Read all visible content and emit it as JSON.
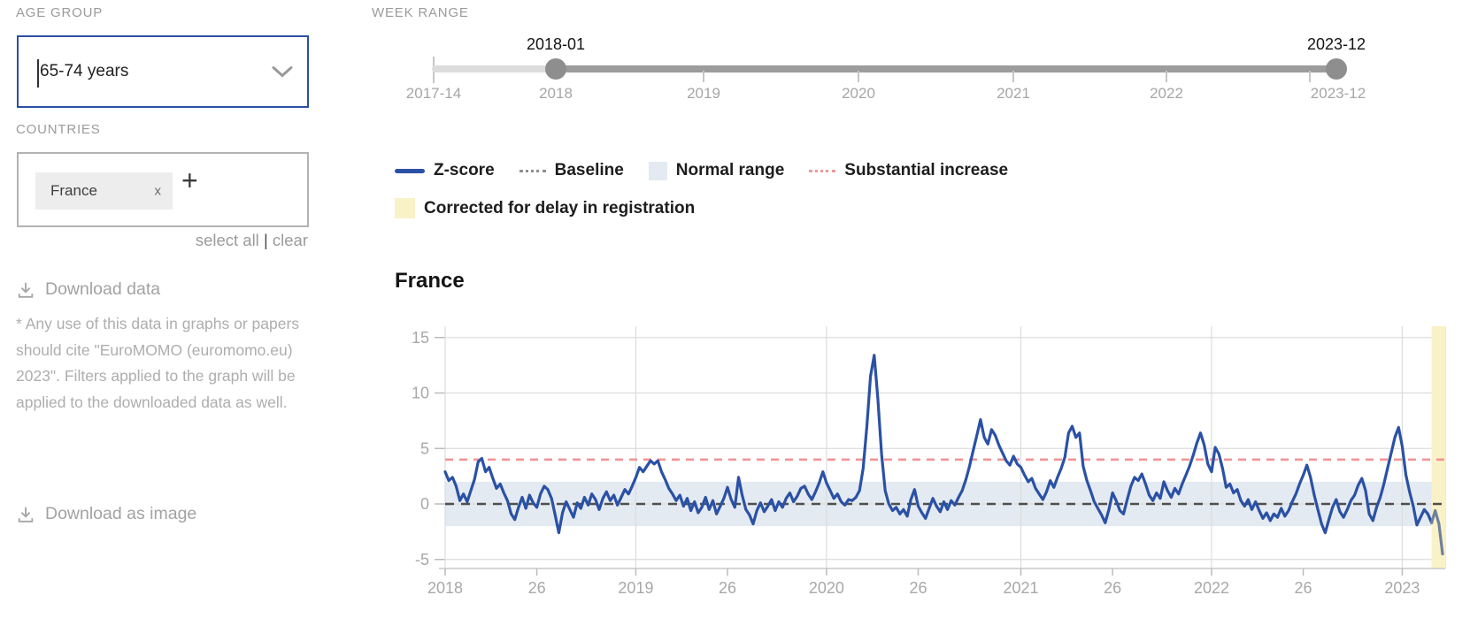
{
  "colors": {
    "accent_blue": "#2b50a1",
    "zscore": "#2a51a5",
    "zscore_corrected_tail": "#70819e",
    "baseline": "#4f4f4f",
    "normal_range": "#e4eaf1",
    "substantial_increase": "#f29496",
    "corrected_band": "#f9f2c7",
    "gridline": "#dcdcdc"
  },
  "sidebar": {
    "age_group_label": "AGE GROUP",
    "age_group_value": "65-74 years",
    "countries_label": "COUNTRIES",
    "country_tags": [
      {
        "label": "France",
        "remove_label": "x"
      }
    ],
    "add_country_label": "+",
    "select_all_label": "select all",
    "separator": "|",
    "clear_label": "clear",
    "download_data_label": "Download data",
    "citation": "* Any use of this data in graphs or papers should cite \"EuroMOMO (euromomo.eu) 2023\". Filters applied to the graph will be applied to the downloaded data as well.",
    "download_image_label": "Download as image"
  },
  "week_range": {
    "label": "WEEK RANGE",
    "start_value": "2018-01",
    "end_value": "2023-12",
    "axis_ticks": [
      "2017-14",
      "2018",
      "2019",
      "2020",
      "2021",
      "2022",
      "2023-12"
    ]
  },
  "legend": {
    "items": [
      {
        "label": "Z-score",
        "swatch": "line"
      },
      {
        "label": "Baseline",
        "swatch": "dotted"
      },
      {
        "label": "Normal range",
        "swatch": "box"
      },
      {
        "label": "Substantial increase",
        "swatch": "dotted-red"
      },
      {
        "label": "Corrected for delay in registration",
        "swatch": "box-yellow"
      }
    ]
  },
  "chart_data": {
    "type": "line",
    "title": "France",
    "ylabel": "",
    "xlabel": "",
    "ylim": [
      -6,
      16
    ],
    "y_ticks": [
      15,
      10,
      5,
      0,
      -5
    ],
    "baseline_value": 0,
    "substantial_increase_value": 4,
    "normal_range": [
      -2,
      2
    ],
    "x_start_week": "2018-01",
    "x_end_week": "2023-12",
    "corrected_tail_weeks": 3,
    "x_ticks": [
      {
        "week_index": 0,
        "label": "2018",
        "year_line": true
      },
      {
        "week_index": 25,
        "label": "26"
      },
      {
        "week_index": 52,
        "label": "2019",
        "year_line": true
      },
      {
        "week_index": 77,
        "label": "26"
      },
      {
        "week_index": 104,
        "label": "2020",
        "year_line": true
      },
      {
        "week_index": 129,
        "label": "26"
      },
      {
        "week_index": 157,
        "label": "2021",
        "year_line": true
      },
      {
        "week_index": 182,
        "label": "26"
      },
      {
        "week_index": 209,
        "label": "2022",
        "year_line": true
      },
      {
        "week_index": 234,
        "label": "26"
      },
      {
        "week_index": 261,
        "label": "2023",
        "year_line": true
      }
    ],
    "series": [
      {
        "name": "Z-score",
        "values": [
          2.9,
          2.1,
          2.4,
          1.6,
          0.3,
          0.9,
          0.2,
          1.2,
          2.2,
          3.8,
          4.1,
          2.9,
          3.3,
          2.3,
          1.4,
          1.8,
          1.0,
          0.3,
          -0.9,
          -1.4,
          -0.3,
          0.6,
          -0.4,
          0.8,
          0.1,
          -0.3,
          0.9,
          1.6,
          1.3,
          0.5,
          -1.0,
          -2.6,
          -0.8,
          0.2,
          -0.5,
          -1.2,
          0.1,
          -0.4,
          0.6,
          -0.1,
          0.9,
          0.4,
          -0.5,
          0.5,
          1.1,
          0.3,
          0.8,
          -0.1,
          0.6,
          1.3,
          0.9,
          1.6,
          2.4,
          3.3,
          2.9,
          3.4,
          3.9,
          3.6,
          3.9,
          2.9,
          2.2,
          1.4,
          0.9,
          0.3,
          0.8,
          -0.2,
          0.5,
          -0.6,
          0.2,
          -0.8,
          -0.3,
          0.6,
          -0.5,
          0.3,
          -0.9,
          -0.2,
          0.5,
          1.5,
          0.4,
          -0.3,
          2.4,
          0.8,
          -0.5,
          -1.0,
          -1.8,
          -0.6,
          0.1,
          -0.7,
          -0.2,
          0.4,
          -0.6,
          0.2,
          -0.3,
          0.5,
          1.0,
          0.2,
          0.7,
          1.4,
          1.6,
          0.9,
          0.4,
          1.1,
          1.9,
          2.9,
          1.9,
          1.2,
          0.5,
          0.9,
          0.2,
          -0.1,
          0.4,
          0.3,
          0.6,
          1.2,
          3.2,
          7.0,
          11.5,
          13.4,
          9.5,
          4.5,
          1.2,
          0.0,
          -0.6,
          -0.3,
          -0.9,
          -0.5,
          -1.1,
          0.4,
          1.3,
          -0.2,
          -0.8,
          -1.3,
          -0.4,
          0.5,
          -0.2,
          -0.7,
          0.2,
          -0.5,
          0.3,
          -0.1,
          0.6,
          1.2,
          2.2,
          3.4,
          4.8,
          6.2,
          7.6,
          6.0,
          5.4,
          6.7,
          6.2,
          5.3,
          4.6,
          3.9,
          3.5,
          4.3,
          3.6,
          3.3,
          2.6,
          2.0,
          2.3,
          1.4,
          0.9,
          0.4,
          1.1,
          2.1,
          1.5,
          2.4,
          3.2,
          4.2,
          6.4,
          7.0,
          6.0,
          6.4,
          3.4,
          2.1,
          1.2,
          0.2,
          -0.4,
          -1.0,
          -1.7,
          -0.5,
          1.0,
          0.3,
          -0.6,
          -0.9,
          0.4,
          1.6,
          2.4,
          2.1,
          2.7,
          1.8,
          0.8,
          0.3,
          1.0,
          0.5,
          2.0,
          1.2,
          0.6,
          1.4,
          0.9,
          1.8,
          2.6,
          3.4,
          4.4,
          5.5,
          6.4,
          5.3,
          3.6,
          2.9,
          5.1,
          4.5,
          3.2,
          1.5,
          1.8,
          1.0,
          1.3,
          0.3,
          -0.2,
          0.4,
          -0.5,
          0.2,
          -0.6,
          -1.3,
          -0.8,
          -1.5,
          -0.9,
          -1.2,
          -0.4,
          -1.1,
          -0.6,
          0.2,
          0.9,
          1.8,
          2.6,
          3.5,
          2.4,
          0.8,
          -0.5,
          -1.8,
          -2.6,
          -1.4,
          -0.3,
          0.4,
          -0.7,
          -1.2,
          -0.5,
          0.3,
          0.8,
          1.7,
          2.3,
          1.2,
          -0.9,
          -1.5,
          -0.3,
          0.6,
          1.8,
          3.2,
          4.6,
          6.0,
          6.9,
          5.2,
          2.6,
          1.1,
          -0.2,
          -1.9,
          -1.2,
          -0.5,
          -0.9,
          -1.7,
          -0.6,
          -1.8,
          -4.5
        ]
      }
    ]
  }
}
